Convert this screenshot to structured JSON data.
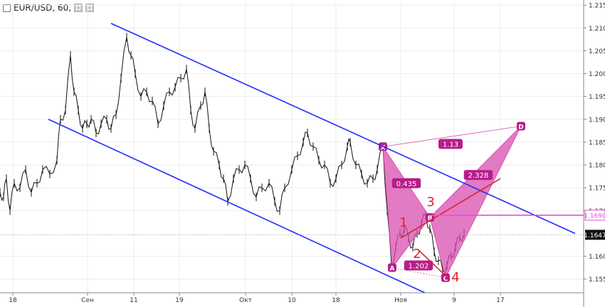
{
  "header": {
    "symbol": "EUR/USD, 60,"
  },
  "chart_data": {
    "type": "candlestick",
    "ylim": [
      1.152,
      1.2155
    ],
    "xlim": [
      0,
      820
    ],
    "y_ticks": [
      "1.2150",
      "1.2100",
      "1.2050",
      "1.2000",
      "1.1950",
      "1.1900",
      "1.1850",
      "1.1800",
      "1.1750",
      "1.1700",
      "1.1600",
      "1.1550"
    ],
    "x_ticks": [
      {
        "label": "18",
        "x": 18
      },
      {
        "label": "Сен",
        "x": 123
      },
      {
        "label": "11",
        "x": 188
      },
      {
        "label": "19",
        "x": 252
      },
      {
        "label": "Окт",
        "x": 345
      },
      {
        "label": "10",
        "x": 410
      },
      {
        "label": "18",
        "x": 472
      },
      {
        "label": "Ноя",
        "x": 563
      },
      {
        "label": "9",
        "x": 638
      },
      {
        "label": "17",
        "x": 703
      }
    ],
    "price_path": [
      [
        0,
        1.174
      ],
      [
        5,
        1.173
      ],
      [
        9,
        1.177
      ],
      [
        14,
        1.17
      ],
      [
        20,
        1.176
      ],
      [
        28,
        1.175
      ],
      [
        36,
        1.179
      ],
      [
        44,
        1.174
      ],
      [
        52,
        1.176
      ],
      [
        60,
        1.179
      ],
      [
        70,
        1.178
      ],
      [
        80,
        1.181
      ],
      [
        85,
        1.19
      ],
      [
        92,
        1.192
      ],
      [
        99,
        1.204
      ],
      [
        104,
        1.196
      ],
      [
        110,
        1.192
      ],
      [
        116,
        1.188
      ],
      [
        122,
        1.189
      ],
      [
        128,
        1.19
      ],
      [
        135,
        1.187
      ],
      [
        142,
        1.189
      ],
      [
        150,
        1.19
      ],
      [
        156,
        1.188
      ],
      [
        163,
        1.191
      ],
      [
        170,
        1.199
      ],
      [
        178,
        1.208
      ],
      [
        184,
        1.204
      ],
      [
        190,
        1.2
      ],
      [
        198,
        1.195
      ],
      [
        206,
        1.196
      ],
      [
        214,
        1.194
      ],
      [
        222,
        1.189
      ],
      [
        230,
        1.193
      ],
      [
        238,
        1.196
      ],
      [
        246,
        1.197
      ],
      [
        254,
        1.199
      ],
      [
        262,
        1.201
      ],
      [
        268,
        1.192
      ],
      [
        274,
        1.188
      ],
      [
        282,
        1.193
      ],
      [
        288,
        1.196
      ],
      [
        294,
        1.188
      ],
      [
        300,
        1.183
      ],
      [
        308,
        1.18
      ],
      [
        314,
        1.177
      ],
      [
        320,
        1.172
      ],
      [
        328,
        1.177
      ],
      [
        336,
        1.179
      ],
      [
        344,
        1.18
      ],
      [
        352,
        1.177
      ],
      [
        360,
        1.173
      ],
      [
        368,
        1.175
      ],
      [
        378,
        1.176
      ],
      [
        386,
        1.172
      ],
      [
        393,
        1.17
      ],
      [
        400,
        1.175
      ],
      [
        410,
        1.179
      ],
      [
        418,
        1.182
      ],
      [
        426,
        1.185
      ],
      [
        432,
        1.187
      ],
      [
        440,
        1.184
      ],
      [
        448,
        1.181
      ],
      [
        456,
        1.18
      ],
      [
        464,
        1.176
      ],
      [
        472,
        1.177
      ],
      [
        480,
        1.18
      ],
      [
        488,
        1.184
      ],
      [
        492,
        1.185
      ],
      [
        500,
        1.18
      ],
      [
        508,
        1.178
      ],
      [
        516,
        1.176
      ],
      [
        524,
        1.177
      ],
      [
        530,
        1.179
      ],
      [
        538,
        1.184
      ],
      [
        544,
        1.17
      ],
      [
        550,
        1.158
      ],
      [
        556,
        1.162
      ],
      [
        562,
        1.165
      ],
      [
        568,
        1.166
      ],
      [
        574,
        1.164
      ],
      [
        580,
        1.162
      ],
      [
        586,
        1.165
      ],
      [
        592,
        1.167
      ],
      [
        598,
        1.169
      ],
      [
        604,
        1.166
      ],
      [
        610,
        1.161
      ],
      [
        616,
        1.159
      ],
      [
        622,
        1.157
      ],
      [
        628,
        1.158
      ],
      [
        634,
        1.16
      ],
      [
        640,
        1.162
      ],
      [
        646,
        1.164
      ],
      [
        652,
        1.165
      ]
    ],
    "channel_upper": [
      [
        156,
        1.211
      ],
      [
        808,
        1.165
      ]
    ],
    "channel_lower": [
      [
        68,
        1.19
      ],
      [
        597,
        1.152
      ]
    ],
    "pattern_points": [
      {
        "label": "X",
        "x": 538,
        "y": 1.184
      },
      {
        "label": "A",
        "x": 551,
        "y": 1.1575
      },
      {
        "label": "B",
        "x": 604,
        "y": 1.1685
      },
      {
        "label": "C",
        "x": 626,
        "y": 1.1553
      },
      {
        "label": "D",
        "x": 732,
        "y": 1.1885
      }
    ],
    "ratios": [
      {
        "label": "0.435",
        "x": 571,
        "y": 1.176
      },
      {
        "label": "1.202",
        "x": 588,
        "y": 1.158
      },
      {
        "label": "2.328",
        "x": 672,
        "y": 1.1778
      },
      {
        "label": "1.13",
        "x": 633,
        "y": 1.1846
      }
    ],
    "wave_labels": [
      {
        "label": "1",
        "x": 567,
        "y": 1.1665
      },
      {
        "label": "2",
        "x": 586,
        "y": 1.1596
      },
      {
        "label": "3",
        "x": 605,
        "y": 1.171
      },
      {
        "label": "4",
        "x": 640,
        "y": 1.1545
      }
    ],
    "wave_line_up": [
      [
        563,
        1.164
      ],
      [
        703,
        1.177
      ]
    ],
    "wave_line_down": [
      [
        587,
        1.1615
      ],
      [
        631,
        1.155
      ]
    ],
    "hline": {
      "y": 1.169,
      "x_from": 604,
      "label": "1.1690",
      "color": "#e54fd8"
    },
    "current": {
      "y": 1.1647,
      "label": "1.1647"
    }
  },
  "colors": {
    "channel": "#1f2bff",
    "pattern_fill": "#d84fb0",
    "pattern_label_bg": "#b71d8a",
    "wave": "#e0202a",
    "grid": "#ececec"
  }
}
